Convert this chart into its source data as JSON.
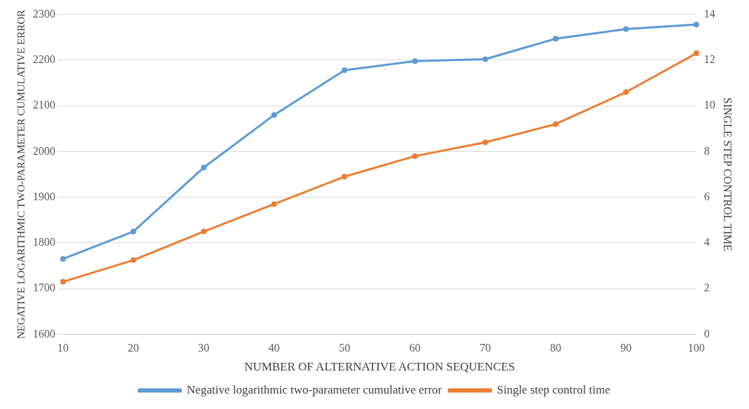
{
  "chart_data": {
    "type": "line",
    "xlabel": "NUMBER OF ALTERNATIVE ACTION SEQUENCES",
    "ylabel": "NEGATIVE LOGARITHMIC TWO-PARAMETER CUMULATIVE ERROR",
    "y2label": "SINGLE STEP CONTROL TIME",
    "x": [
      10,
      20,
      30,
      40,
      50,
      60,
      70,
      80,
      90,
      100
    ],
    "xlim": [
      10,
      100
    ],
    "xticks": [
      10,
      20,
      30,
      40,
      50,
      60,
      70,
      80,
      90,
      100
    ],
    "ylim": [
      1600,
      2300
    ],
    "yticks": [
      1600,
      1700,
      1800,
      1900,
      2000,
      2100,
      2200,
      2300
    ],
    "y2lim": [
      0,
      14
    ],
    "y2ticks": [
      0,
      2,
      4,
      6,
      8,
      10,
      12,
      14
    ],
    "series": [
      {
        "name": "Negative logarithmic two-parameter cumulative error",
        "color": "#5b9bd5",
        "values": [
          1765,
          1825,
          1965,
          2080,
          2178,
          2198,
          2202,
          2247,
          2268,
          2278
        ]
      },
      {
        "name": "Single step control time",
        "color": "#ed7d31",
        "axis": "y2",
        "values": [
          2.3,
          3.25,
          4.5,
          5.7,
          6.9,
          7.8,
          8.4,
          9.2,
          10.6,
          12.3
        ]
      }
    ],
    "grid": "y",
    "legend": "bottom",
    "marker": "circle",
    "line_style": "solid"
  }
}
